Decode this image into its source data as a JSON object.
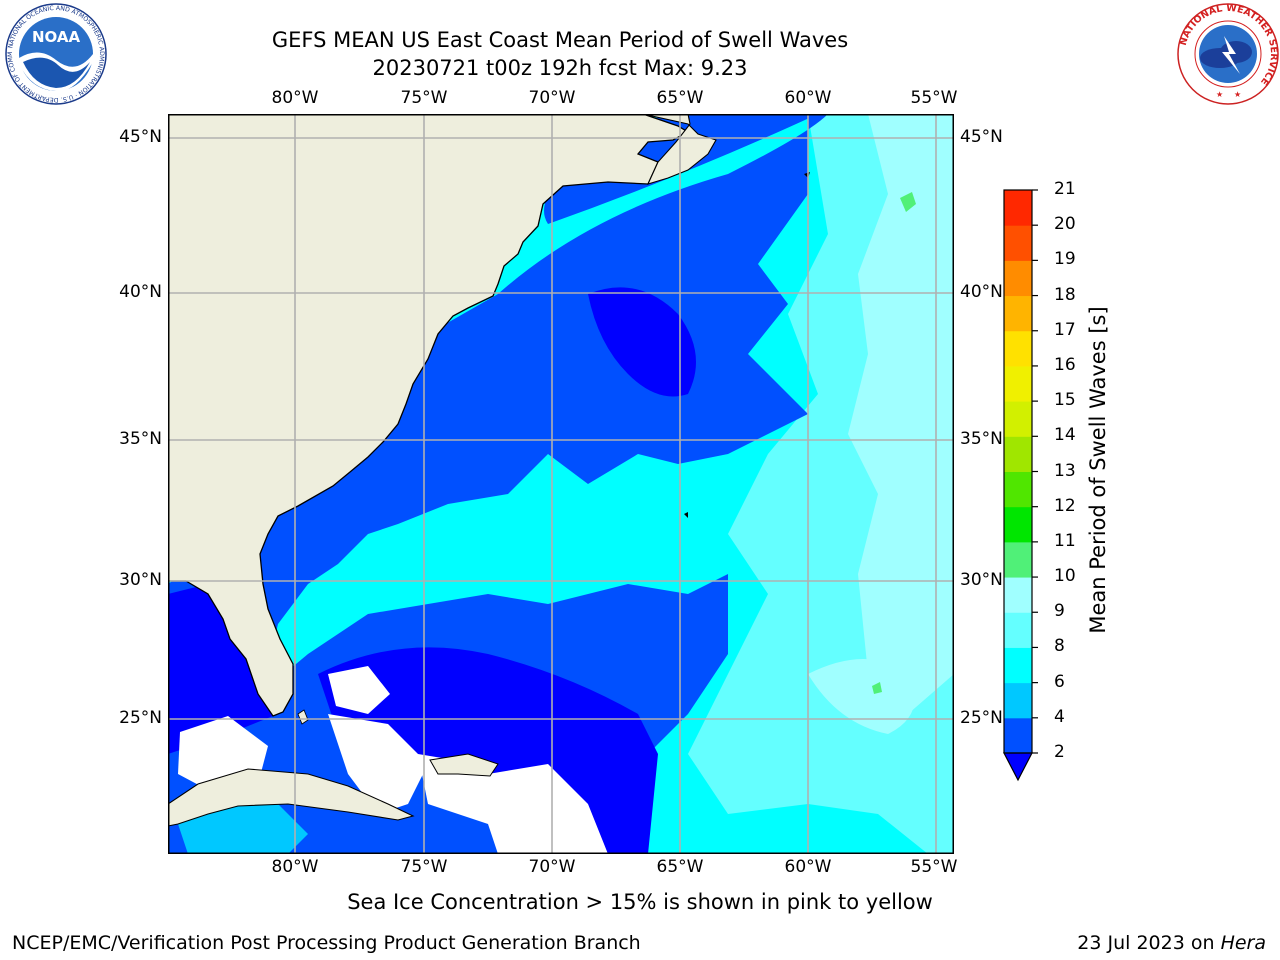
{
  "header": {
    "title_line1": "GEFS MEAN US East Coast Mean Period of Swell Waves",
    "title_line2": "20230721 t00z 192h fcst   Max: 9.23"
  },
  "logos": {
    "noaa_text": "NOAA",
    "noaa_ring_text": "NATIONAL OCEANIC AND ATMOSPHERIC ADMINISTRATION · U.S. DEPARTMENT OF COMMERCE",
    "nws_ring_text": "NATIONAL WEATHER SERVICE"
  },
  "map": {
    "lon_labels": [
      "80°W",
      "75°W",
      "70°W",
      "65°W",
      "60°W",
      "55°W"
    ],
    "lat_labels": [
      "45°N",
      "40°N",
      "35°N",
      "30°N",
      "25°N"
    ],
    "colors": {
      "land": "#eeeedd",
      "ice_free_pixels": "#ffffff",
      "grid": "#b0b0b0",
      "coast": "#000000"
    }
  },
  "colorbar": {
    "title": "Mean Period of Swell Waves [s]",
    "levels": [
      "2",
      "4",
      "6",
      "8",
      "9",
      "10",
      "11",
      "12",
      "13",
      "14",
      "15",
      "16",
      "17",
      "18",
      "19",
      "20",
      "21"
    ],
    "colors": [
      "#0050ff",
      "#00c8ff",
      "#00ffff",
      "#64ffff",
      "#a0ffff",
      "#50f078",
      "#00e600",
      "#50e600",
      "#a0e600",
      "#d2f000",
      "#f0f000",
      "#ffe100",
      "#ffb400",
      "#ff8c00",
      "#ff5000",
      "#ff2800"
    ],
    "under_color": "#0000ff"
  },
  "footer": {
    "sea_ice_note": "Sea Ice Concentration > 15% is shown in pink to yellow",
    "producer": "NCEP/EMC/Verification Post Processing Product Generation Branch",
    "date_prefix": "23 Jul 2023 on ",
    "host": "Hera"
  }
}
